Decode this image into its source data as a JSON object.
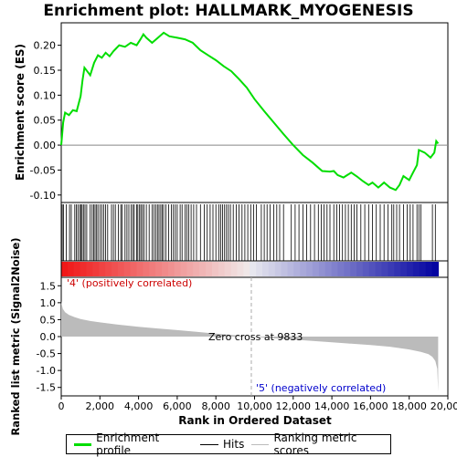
{
  "title": "Enrichment plot: HALLMARK_MYOGENESIS",
  "legend": {
    "items": [
      {
        "label": "Enrichment profile",
        "color": "#00dd00"
      },
      {
        "label": "Hits",
        "color": "#000000"
      },
      {
        "label": "Ranking metric scores",
        "color": "#bbbbbb"
      }
    ]
  },
  "chart_data": [
    {
      "type": "line",
      "name": "enrichment-profile",
      "ylabel": "Enrichment score (ES)",
      "ylim": [
        -0.115,
        0.245
      ],
      "yticks": [
        "0.20",
        "0.15",
        "0.10",
        "0.05",
        "0.00",
        "-0.05",
        "-0.10"
      ],
      "ytick_values": [
        0.2,
        0.15,
        0.1,
        0.05,
        0.0,
        -0.05,
        -0.1
      ],
      "xlim": [
        0,
        20000
      ],
      "color": "#00dd00",
      "points": [
        [
          0,
          0.0
        ],
        [
          100,
          0.045
        ],
        [
          200,
          0.065
        ],
        [
          400,
          0.06
        ],
        [
          600,
          0.07
        ],
        [
          800,
          0.068
        ],
        [
          1000,
          0.098
        ],
        [
          1100,
          0.13
        ],
        [
          1200,
          0.155
        ],
        [
          1400,
          0.145
        ],
        [
          1500,
          0.14
        ],
        [
          1700,
          0.165
        ],
        [
          1900,
          0.18
        ],
        [
          2100,
          0.175
        ],
        [
          2300,
          0.185
        ],
        [
          2500,
          0.178
        ],
        [
          2700,
          0.188
        ],
        [
          3000,
          0.2
        ],
        [
          3300,
          0.197
        ],
        [
          3600,
          0.205
        ],
        [
          3900,
          0.2
        ],
        [
          4100,
          0.212
        ],
        [
          4250,
          0.222
        ],
        [
          4400,
          0.215
        ],
        [
          4700,
          0.205
        ],
        [
          5000,
          0.215
        ],
        [
          5300,
          0.225
        ],
        [
          5600,
          0.218
        ],
        [
          6000,
          0.215
        ],
        [
          6400,
          0.212
        ],
        [
          6800,
          0.205
        ],
        [
          7200,
          0.19
        ],
        [
          7600,
          0.18
        ],
        [
          8000,
          0.17
        ],
        [
          8400,
          0.158
        ],
        [
          8800,
          0.148
        ],
        [
          9200,
          0.132
        ],
        [
          9600,
          0.115
        ],
        [
          10000,
          0.092
        ],
        [
          10500,
          0.068
        ],
        [
          11000,
          0.045
        ],
        [
          11500,
          0.022
        ],
        [
          12000,
          0.0
        ],
        [
          12500,
          -0.02
        ],
        [
          13000,
          -0.035
        ],
        [
          13500,
          -0.052
        ],
        [
          13900,
          -0.053
        ],
        [
          14100,
          -0.052
        ],
        [
          14300,
          -0.06
        ],
        [
          14600,
          -0.065
        ],
        [
          14800,
          -0.06
        ],
        [
          15000,
          -0.055
        ],
        [
          15300,
          -0.063
        ],
        [
          15600,
          -0.072
        ],
        [
          15900,
          -0.08
        ],
        [
          16100,
          -0.075
        ],
        [
          16400,
          -0.085
        ],
        [
          16700,
          -0.075
        ],
        [
          17000,
          -0.085
        ],
        [
          17300,
          -0.09
        ],
        [
          17500,
          -0.08
        ],
        [
          17700,
          -0.062
        ],
        [
          18000,
          -0.07
        ],
        [
          18200,
          -0.055
        ],
        [
          18400,
          -0.04
        ],
        [
          18500,
          -0.01
        ],
        [
          18800,
          -0.015
        ],
        [
          19100,
          -0.025
        ],
        [
          19300,
          -0.015
        ],
        [
          19400,
          0.008
        ],
        [
          19500,
          0.003
        ]
      ]
    },
    {
      "type": "bar",
      "name": "hits",
      "xlim": [
        0,
        20000
      ],
      "hit_ranks": [
        50,
        120,
        260,
        430,
        520,
        700,
        780,
        860,
        950,
        1010,
        1080,
        1150,
        1230,
        1320,
        1500,
        1600,
        1680,
        1750,
        1830,
        1900,
        2010,
        2100,
        2200,
        2300,
        2400,
        2600,
        2700,
        2800,
        2950,
        3080,
        3150,
        3300,
        3400,
        3500,
        3620,
        3700,
        3780,
        3900,
        3960,
        4050,
        4120,
        4200,
        4280,
        4400,
        4550,
        4700,
        4800,
        4900,
        4980,
        5060,
        5150,
        5220,
        5300,
        5420,
        5550,
        5700,
        5800,
        5900,
        6000,
        6150,
        6250,
        6400,
        6500,
        6600,
        6720,
        6850,
        7000,
        7200,
        7400,
        7550,
        7700,
        7850,
        8000,
        8150,
        8250,
        8350,
        8450,
        8550,
        8650,
        8750,
        8900,
        9050,
        9200,
        9350,
        9500,
        9650,
        9800,
        9950,
        10100,
        10350,
        10500,
        10650,
        10800,
        11000,
        11150,
        11300,
        11500,
        11900,
        12100,
        12300,
        12500,
        12700,
        12900,
        13100,
        13300,
        13450,
        13600,
        13750,
        13900,
        14100,
        14250,
        14400,
        14550,
        14700,
        14850,
        15000,
        15150,
        15300,
        15500,
        15700,
        15900,
        16100,
        16300,
        16500,
        16700,
        16900,
        17100,
        17200,
        17350,
        17500,
        17700,
        17900,
        18050,
        18200,
        18400,
        18500,
        18600,
        19200,
        19350
      ]
    },
    {
      "type": "area",
      "name": "ranking-metric",
      "ylabel": "Ranked list metric (Signal2Noise)",
      "xlabel": "Rank in Ordered Dataset",
      "ylim": [
        -1.75,
        1.75
      ],
      "yticks": [
        "1.5",
        "1.0",
        "0.5",
        "0.0",
        "-0.5",
        "-1.0",
        "-1.5"
      ],
      "ytick_values": [
        1.5,
        1.0,
        0.5,
        0.0,
        -0.5,
        -1.0,
        -1.5
      ],
      "xlim": [
        0,
        20000
      ],
      "xticks": [
        "0",
        "2,000",
        "4,000",
        "6,000",
        "8,000",
        "10,000",
        "12,000",
        "14,000",
        "16,000",
        "18,000",
        "20,000"
      ],
      "xtick_values": [
        0,
        2000,
        4000,
        6000,
        8000,
        10000,
        12000,
        14000,
        16000,
        18000,
        20000
      ],
      "color": "#bbbbbb",
      "points": [
        [
          0,
          1.05
        ],
        [
          30,
          0.95
        ],
        [
          80,
          0.82
        ],
        [
          200,
          0.72
        ],
        [
          400,
          0.64
        ],
        [
          700,
          0.57
        ],
        [
          1000,
          0.52
        ],
        [
          1500,
          0.46
        ],
        [
          2000,
          0.42
        ],
        [
          3000,
          0.35
        ],
        [
          4000,
          0.29
        ],
        [
          5000,
          0.24
        ],
        [
          6000,
          0.19
        ],
        [
          7000,
          0.14
        ],
        [
          8000,
          0.09
        ],
        [
          9000,
          0.04
        ],
        [
          9833,
          0.0
        ],
        [
          11000,
          -0.05
        ],
        [
          12000,
          -0.09
        ],
        [
          13000,
          -0.13
        ],
        [
          14000,
          -0.17
        ],
        [
          15000,
          -0.21
        ],
        [
          16000,
          -0.25
        ],
        [
          17000,
          -0.3
        ],
        [
          18000,
          -0.38
        ],
        [
          18600,
          -0.45
        ],
        [
          19000,
          -0.52
        ],
        [
          19200,
          -0.6
        ],
        [
          19350,
          -0.72
        ],
        [
          19450,
          -0.95
        ],
        [
          19500,
          -1.62
        ]
      ],
      "annotations": {
        "positive": "'4' (positively correlated)",
        "negative": "'5' (negatively correlated)",
        "zero_cross": "Zero cross at 9833"
      },
      "zero_cross_rank": 9833
    }
  ]
}
